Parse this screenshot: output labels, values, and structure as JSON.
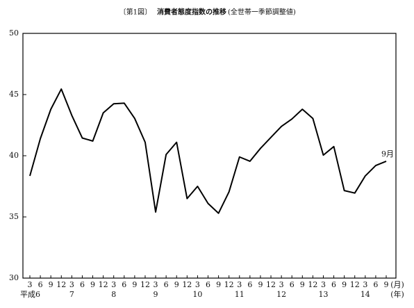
{
  "chart_data": {
    "type": "line",
    "figure_label": "〔第1図〕",
    "title": "消費者態度指数の推移",
    "subtitle": "(全世帯一季節調整値)",
    "categories": [
      "3",
      "6",
      "9",
      "12",
      "3",
      "6",
      "9",
      "12",
      "3",
      "6",
      "9",
      "12",
      "3",
      "6",
      "9",
      "12",
      "3",
      "6",
      "9",
      "12",
      "3",
      "6",
      "9",
      "12",
      "3",
      "6",
      "9",
      "12",
      "3",
      "6",
      "9",
      "12",
      "3",
      "6",
      "9"
    ],
    "year_labels": [
      "平成6",
      null,
      null,
      null,
      "7",
      null,
      null,
      null,
      "8",
      null,
      null,
      null,
      "9",
      null,
      null,
      null,
      "10",
      null,
      null,
      null,
      "11",
      null,
      null,
      null,
      "12",
      null,
      null,
      null,
      "13",
      null,
      null,
      null,
      "14",
      null,
      null
    ],
    "month_unit": "(月)",
    "year_unit": "(年)",
    "annotation": "9月",
    "series": [
      {
        "color": "#000000",
        "values": [
          38.35,
          41.4,
          43.8,
          45.45,
          43.3,
          41.45,
          41.2,
          43.5,
          44.25,
          44.3,
          43.05,
          41.1,
          35.4,
          40.1,
          41.1,
          36.5,
          37.5,
          36.1,
          35.3,
          37.05,
          39.9,
          39.55,
          40.6,
          41.5,
          42.4,
          43.0,
          43.8,
          43.05,
          40.05,
          40.75,
          37.15,
          36.95,
          38.35,
          39.2,
          39.55
        ]
      }
    ],
    "ylim": [
      30,
      50
    ],
    "yticks": [
      30,
      35,
      40,
      45,
      50
    ]
  }
}
